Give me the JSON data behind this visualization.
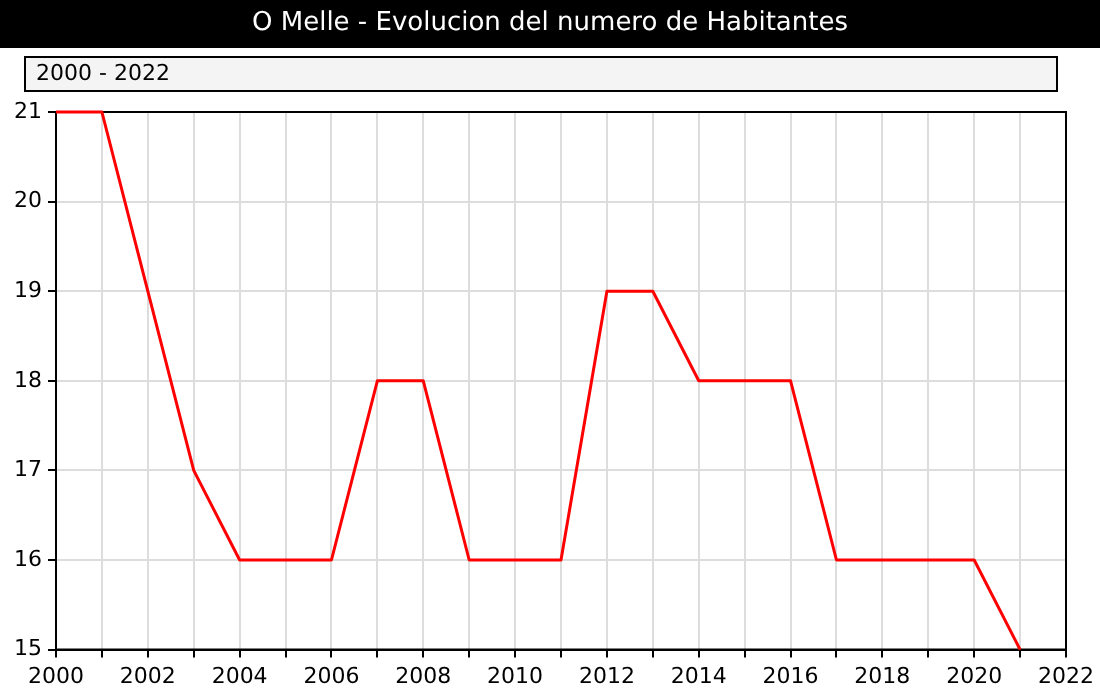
{
  "chart_data": {
    "type": "line",
    "title": "O Melle - Evolucion del numero de Habitantes",
    "subtitle": "2000 - 2022",
    "x": [
      2000,
      2001,
      2002,
      2003,
      2004,
      2005,
      2006,
      2007,
      2008,
      2009,
      2010,
      2011,
      2012,
      2013,
      2014,
      2015,
      2016,
      2017,
      2018,
      2019,
      2020,
      2021
    ],
    "series": [
      {
        "color": "#ff0000",
        "values": [
          21,
          21,
          19,
          17,
          16,
          16,
          16,
          18,
          18,
          16,
          16,
          16,
          19,
          19,
          18,
          18,
          18,
          16,
          16,
          16,
          16,
          15
        ]
      }
    ],
    "xlim": [
      2000,
      2022
    ],
    "xticks": [
      2000,
      {
        "value": 2001,
        "label": null
      },
      2002,
      {
        "value": 2003,
        "label": null
      },
      2004,
      {
        "value": 2005,
        "label": null
      },
      2006,
      {
        "value": 2007,
        "label": null
      },
      2008,
      {
        "value": 2009,
        "label": null
      },
      2010,
      {
        "value": 2011,
        "label": null
      },
      2012,
      {
        "value": 2013,
        "label": null
      },
      2014,
      {
        "value": 2015,
        "label": null
      },
      2016,
      {
        "value": 2017,
        "label": null
      },
      2018,
      {
        "value": 2019,
        "label": null
      },
      2020,
      {
        "value": 2021,
        "label": null
      },
      2022
    ],
    "ylim": [
      15,
      21
    ],
    "yticks": [
      15,
      16,
      17,
      18,
      19,
      20,
      21
    ],
    "grid": true,
    "legend": false,
    "marker": "none",
    "line_style": "solid"
  }
}
